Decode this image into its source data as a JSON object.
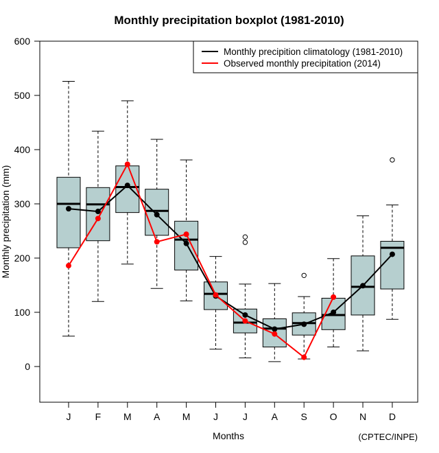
{
  "chart_data": {
    "type": "box",
    "title": "Monthly precipitation boxplot (1981-2010)",
    "xlabel": "Months",
    "ylabel": "Monthly precipitation (mm)",
    "credit": "(CPTEC/INPE)",
    "ylim": [
      -66,
      600
    ],
    "yticks": [
      0,
      100,
      200,
      300,
      400,
      500,
      600
    ],
    "grid": false,
    "legend_position": "top-right",
    "categories": [
      "J",
      "F",
      "M",
      "A",
      "M",
      "J",
      "J",
      "A",
      "S",
      "O",
      "N",
      "D"
    ],
    "boxes": [
      {
        "whisker_low": 56,
        "q1": 219,
        "median": 300,
        "q3": 349,
        "whisker_high": 526,
        "outliers": []
      },
      {
        "whisker_low": 120,
        "q1": 232,
        "median": 299,
        "q3": 330,
        "whisker_high": 434,
        "outliers": []
      },
      {
        "whisker_low": 189,
        "q1": 284,
        "median": 331,
        "q3": 370,
        "whisker_high": 490,
        "outliers": []
      },
      {
        "whisker_low": 144,
        "q1": 242,
        "median": 287,
        "q3": 327,
        "whisker_high": 419,
        "outliers": []
      },
      {
        "whisker_low": 121,
        "q1": 178,
        "median": 234,
        "q3": 268,
        "whisker_high": 381,
        "outliers": []
      },
      {
        "whisker_low": 32,
        "q1": 105,
        "median": 134,
        "q3": 156,
        "whisker_high": 203,
        "outliers": []
      },
      {
        "whisker_low": 16,
        "q1": 62,
        "median": 81,
        "q3": 106,
        "whisker_high": 152,
        "outliers": [
          229,
          239
        ]
      },
      {
        "whisker_low": 9,
        "q1": 36,
        "median": 70,
        "q3": 88,
        "whisker_high": 153,
        "outliers": []
      },
      {
        "whisker_low": 14,
        "q1": 58,
        "median": 80,
        "q3": 99,
        "whisker_high": 129,
        "outliers": [
          168
        ]
      },
      {
        "whisker_low": 36,
        "q1": 68,
        "median": 95,
        "q3": 126,
        "whisker_high": 199,
        "outliers": []
      },
      {
        "whisker_low": 29,
        "q1": 95,
        "median": 147,
        "q3": 204,
        "whisker_high": 278,
        "outliers": []
      },
      {
        "whisker_low": 87,
        "q1": 143,
        "median": 219,
        "q3": 231,
        "whisker_high": 298,
        "outliers": [
          381
        ]
      }
    ],
    "series": [
      {
        "name": "Monthly precipition climatology (1981-2010)",
        "color": "#000000",
        "values": [
          291,
          286,
          334,
          280,
          227,
          130,
          95,
          69,
          78,
          100,
          149,
          207
        ]
      },
      {
        "name": "Observed monthly precipitation (2014)",
        "color": "#ff0000",
        "values": [
          186,
          273,
          373,
          230,
          244,
          132,
          84,
          60,
          17,
          128,
          null,
          null
        ]
      }
    ],
    "box_fill": "#b6cfcf"
  }
}
